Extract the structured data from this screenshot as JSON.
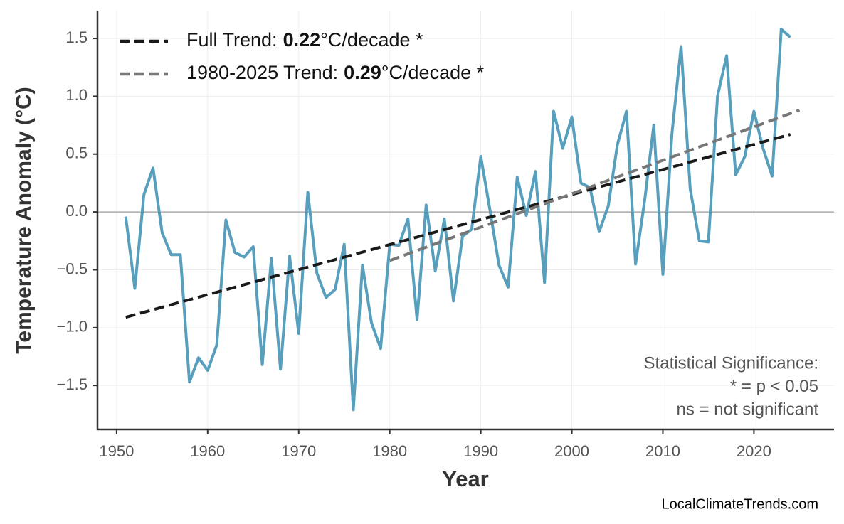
{
  "chart_data": {
    "type": "line",
    "ylabel": "Temperature Anomaly (°C)",
    "xlabel": "Year",
    "xlim": [
      1947.9,
      2028.8
    ],
    "ylim": [
      -1.88,
      1.74
    ],
    "xticks": [
      1950,
      1960,
      1970,
      1980,
      1990,
      2000,
      2010,
      2020
    ],
    "yticks": [
      {
        "value": -1.5,
        "label": "−1.5"
      },
      {
        "value": -1,
        "label": "−1.0"
      },
      {
        "value": -0.5,
        "label": "−0.5"
      },
      {
        "value": 0,
        "label": "0.0"
      },
      0.5,
      {
        "value": 1,
        "label": "1.0"
      },
      1.5
    ],
    "grid": true,
    "zero_line": true,
    "legend": "upper left",
    "series": [
      {
        "color": "#579fbd",
        "style": "solid",
        "x": [
          1951,
          1952,
          1953,
          1954,
          1955,
          1956,
          1957,
          1958,
          1959,
          1960,
          1961,
          1962,
          1963,
          1964,
          1965,
          1966,
          1967,
          1968,
          1969,
          1970,
          1971,
          1972,
          1973,
          1974,
          1975,
          1976,
          1977,
          1978,
          1979,
          1980,
          1981,
          1982,
          1983,
          1984,
          1985,
          1986,
          1987,
          1988,
          1989,
          1990,
          1991,
          1992,
          1993,
          1994,
          1995,
          1996,
          1997,
          1998,
          1999,
          2000,
          2001,
          2002,
          2003,
          2004,
          2005,
          2006,
          2007,
          2008,
          2009,
          2010,
          2011,
          2012,
          2013,
          2014,
          2015,
          2016,
          2017,
          2018,
          2019,
          2020,
          2021,
          2022,
          2023,
          2024
        ],
        "values": [
          -0.04,
          -0.66,
          0.15,
          0.38,
          -0.18,
          -0.37,
          -0.37,
          -1.47,
          -1.26,
          -1.37,
          -1.15,
          -0.07,
          -0.35,
          -0.39,
          -0.3,
          -1.32,
          -0.4,
          -1.36,
          -0.38,
          -1.05,
          0.17,
          -0.53,
          -0.74,
          -0.67,
          -0.28,
          -1.71,
          -0.46,
          -0.96,
          -1.18,
          -0.28,
          -0.29,
          -0.06,
          -0.93,
          0.06,
          -0.51,
          -0.06,
          -0.77,
          -0.21,
          -0.15,
          0.48,
          0.02,
          -0.46,
          -0.65,
          0.3,
          -0.03,
          0.35,
          -0.61,
          0.87,
          0.55,
          0.82,
          0.25,
          0.21,
          -0.17,
          0.05,
          0.58,
          0.87,
          -0.45,
          0.1,
          0.75,
          -0.54,
          0.68,
          1.43,
          0.2,
          -0.25,
          -0.26,
          1.0,
          1.35,
          0.32,
          0.48,
          0.87,
          0.55,
          0.31,
          1.58,
          1.51
        ]
      },
      {
        "name": "Full Trend:",
        "slope": 0.22,
        "suffix": "°C/decade *",
        "color": "#1a1a1a",
        "style": "dashed",
        "x": [
          1951,
          2024
        ],
        "values": [
          -0.91,
          0.67
        ]
      },
      {
        "name": "1980-2025 Trend:",
        "slope": 0.29,
        "suffix": "°C/decade *",
        "color": "#777777",
        "style": "dashed",
        "x": [
          1980,
          2025
        ],
        "values": [
          -0.42,
          0.88
        ]
      }
    ],
    "annotation": [
      "Statistical Significance:",
      "* = p < 0.05",
      "ns = not significant"
    ],
    "source": "LocalClimateTrends.com"
  }
}
